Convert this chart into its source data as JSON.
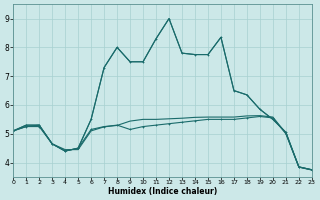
{
  "xlabel": "Humidex (Indice chaleur)",
  "xlim": [
    0,
    23
  ],
  "ylim": [
    3.5,
    9.5
  ],
  "yticks": [
    4,
    5,
    6,
    7,
    8,
    9
  ],
  "xticks": [
    0,
    1,
    2,
    3,
    4,
    5,
    6,
    7,
    8,
    9,
    10,
    11,
    12,
    13,
    14,
    15,
    16,
    17,
    18,
    19,
    20,
    21,
    22,
    23
  ],
  "background_color": "#cce8e8",
  "grid_color": "#a8d0d0",
  "line_color": "#1a6b6b",
  "line1_x": [
    0,
    1,
    2,
    3,
    4,
    5,
    6,
    7,
    8,
    9,
    10,
    11,
    12,
    13,
    14,
    15,
    16,
    17,
    18,
    19,
    20,
    21,
    22,
    23
  ],
  "line1_y": [
    5.1,
    5.25,
    5.25,
    4.65,
    4.4,
    4.5,
    5.15,
    5.25,
    5.3,
    5.15,
    5.25,
    5.3,
    5.35,
    5.4,
    5.45,
    5.5,
    5.5,
    5.5,
    5.55,
    5.6,
    5.55,
    5.0,
    3.85,
    3.75
  ],
  "line2_x": [
    0,
    1,
    2,
    3,
    4,
    5,
    6,
    7,
    8,
    9,
    10,
    11,
    12,
    13,
    14,
    15,
    16,
    17,
    18,
    19,
    20,
    21,
    22,
    23
  ],
  "line2_y": [
    5.1,
    5.25,
    5.3,
    4.65,
    4.45,
    4.45,
    5.1,
    5.24,
    5.29,
    5.44,
    5.5,
    5.5,
    5.52,
    5.54,
    5.57,
    5.58,
    5.58,
    5.58,
    5.62,
    5.63,
    5.58,
    5.02,
    3.84,
    3.74
  ],
  "line3_x": [
    0,
    1,
    2,
    3,
    4,
    5,
    6,
    7,
    8,
    9,
    10,
    11,
    12,
    13,
    14,
    15,
    16,
    17,
    18,
    19,
    20,
    21,
    22,
    23
  ],
  "line3_y": [
    5.1,
    5.3,
    5.3,
    4.65,
    4.4,
    4.5,
    5.5,
    7.3,
    8.0,
    7.5,
    7.5,
    8.3,
    9.0,
    7.8,
    7.75,
    7.75,
    8.35,
    6.5,
    6.35,
    5.85,
    5.5,
    5.05,
    3.85,
    3.75
  ],
  "line4_x": [
    0,
    1,
    2,
    3,
    4,
    5,
    6,
    7,
    8,
    9,
    10,
    11,
    12,
    13,
    14,
    15,
    16,
    17,
    18,
    19,
    20,
    21,
    22,
    23
  ],
  "line4_y": [
    5.1,
    5.3,
    5.3,
    4.65,
    4.4,
    4.5,
    5.5,
    7.3,
    8.0,
    7.5,
    7.5,
    8.3,
    9.0,
    7.8,
    7.75,
    7.75,
    8.35,
    6.5,
    6.35,
    5.85,
    5.5,
    5.05,
    3.85,
    3.75
  ]
}
